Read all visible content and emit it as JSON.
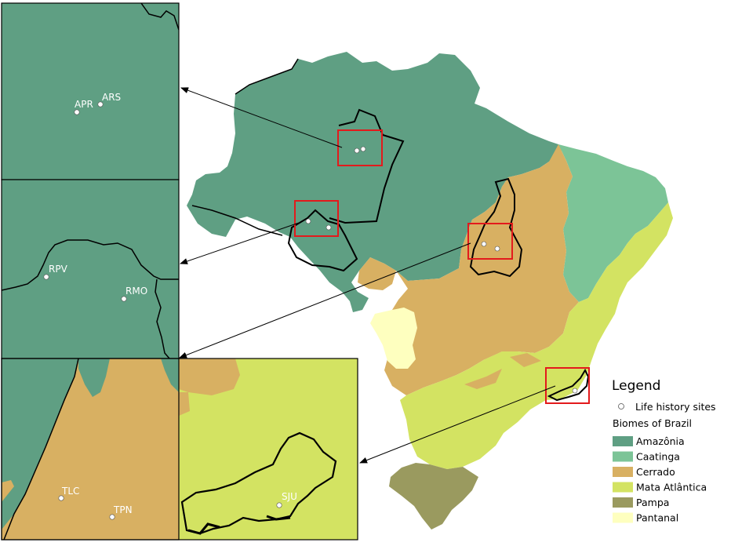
{
  "sites": [
    {
      "code": "APR"
    },
    {
      "code": "ARS"
    },
    {
      "code": "RPV"
    },
    {
      "code": "RMO"
    },
    {
      "code": "TLC"
    },
    {
      "code": "TPN"
    },
    {
      "code": "SJU"
    }
  ],
  "legend": {
    "title": "Legend",
    "sites_label": "Life history sites",
    "biomes_title": "Biomes of Brazil",
    "biomes": [
      {
        "name": "Amazônia",
        "color": "#5f9f83"
      },
      {
        "name": "Caatinga",
        "color": "#7cc497"
      },
      {
        "name": "Cerrado",
        "color": "#d8b062"
      },
      {
        "name": "Mata Atlântica",
        "color": "#d3e362"
      },
      {
        "name": "Pampa",
        "color": "#9a9a5f"
      },
      {
        "name": "Pantanal",
        "color": "#feffbf"
      }
    ]
  },
  "colors": {
    "highlight_box": "#e31a1c",
    "arrow": "#000000",
    "site_marker": "#ffffff"
  }
}
